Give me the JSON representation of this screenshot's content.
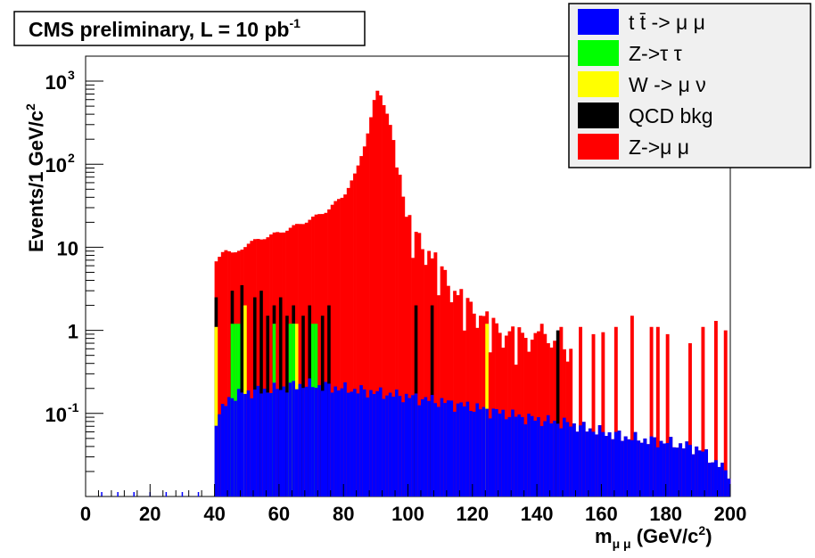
{
  "title": "CMS preliminary, L = 10 pb",
  "title_sup": "-1",
  "chart_data": {
    "type": "bar",
    "stacked": true,
    "log_y": true,
    "xlim": [
      0,
      200
    ],
    "ylim": [
      0.01,
      2000
    ],
    "xlabel": "m",
    "xlabel_sub": "μ μ",
    "xlabel_units": " (GeV/c",
    "xlabel_units_sup": "2",
    "xlabel_units_end": ")",
    "ylabel": "Events/1 GeV/c",
    "ylabel_sup": "2",
    "x_ticks": [
      "0",
      "20",
      "40",
      "60",
      "80",
      "100",
      "120",
      "140",
      "160",
      "180",
      "200"
    ],
    "y_ticks": [
      {
        "base": "10",
        "exp": "-1",
        "value": 0.1
      },
      {
        "base": "1",
        "exp": "",
        "value": 1
      },
      {
        "base": "10",
        "exp": "",
        "value": 10
      },
      {
        "base": "10",
        "exp": "2",
        "value": 100
      },
      {
        "base": "10",
        "exp": "3",
        "value": 1000
      }
    ],
    "legend_position": "top-right",
    "legend": [
      {
        "label": "t t̄ -> μ μ",
        "color": "#0000ff"
      },
      {
        "label": "Z->τ τ",
        "color": "#00ff00"
      },
      {
        "label": "W -> μ ν",
        "color": "#ffff00"
      },
      {
        "label": "QCD bkg",
        "color": "#000000"
      },
      {
        "label": "Z->μ μ",
        "color": "#ff0000"
      }
    ],
    "bin_width": 1,
    "ttbar_points": [
      [
        40,
        0.08
      ],
      [
        45,
        0.16
      ],
      [
        50,
        0.18
      ],
      [
        55,
        0.19
      ],
      [
        60,
        0.2
      ],
      [
        65,
        0.22
      ],
      [
        70,
        0.22
      ],
      [
        75,
        0.21
      ],
      [
        80,
        0.2
      ],
      [
        90,
        0.18
      ],
      [
        100,
        0.16
      ],
      [
        110,
        0.14
      ],
      [
        120,
        0.12
      ],
      [
        130,
        0.1
      ],
      [
        140,
        0.085
      ],
      [
        150,
        0.075
      ],
      [
        160,
        0.06
      ],
      [
        170,
        0.05
      ],
      [
        180,
        0.045
      ],
      [
        190,
        0.038
      ],
      [
        199,
        0.02
      ]
    ],
    "total_points": [
      [
        40,
        6
      ],
      [
        43,
        10
      ],
      [
        46,
        8
      ],
      [
        50,
        11
      ],
      [
        55,
        13
      ],
      [
        60,
        15
      ],
      [
        65,
        18
      ],
      [
        70,
        22
      ],
      [
        75,
        28
      ],
      [
        80,
        42
      ],
      [
        84,
        80
      ],
      [
        87,
        200
      ],
      [
        89,
        450
      ],
      [
        90,
        720
      ],
      [
        91,
        750
      ],
      [
        92,
        600
      ],
      [
        94,
        380
      ],
      [
        96,
        150
      ],
      [
        98,
        50
      ],
      [
        100,
        22
      ],
      [
        103,
        14
      ],
      [
        106,
        10
      ],
      [
        110,
        6
      ],
      [
        115,
        3
      ],
      [
        120,
        2
      ],
      [
        125,
        1.4
      ],
      [
        130,
        1
      ],
      [
        140,
        0.9
      ],
      [
        150,
        0.5
      ]
    ],
    "z_spikes": [
      [
        141,
        1.2
      ],
      [
        145,
        0.75
      ],
      [
        147,
        1.1
      ],
      [
        150,
        0.6
      ],
      [
        153,
        1.1
      ],
      [
        157,
        0.9
      ],
      [
        160,
        0.95
      ],
      [
        164,
        1.1
      ],
      [
        169,
        1.5
      ],
      [
        175,
        1.1
      ],
      [
        177,
        1.1
      ],
      [
        180,
        0.9
      ],
      [
        187,
        0.7
      ],
      [
        191,
        1.1
      ],
      [
        195,
        1.3
      ],
      [
        198,
        1.0
      ]
    ],
    "qcd_bins": [
      [
        40,
        2.5
      ],
      [
        45,
        3
      ],
      [
        48,
        3.5
      ],
      [
        52,
        2.5
      ],
      [
        54,
        3
      ],
      [
        56,
        1.5
      ],
      [
        58,
        2
      ],
      [
        60,
        2.5
      ],
      [
        62,
        1.5
      ],
      [
        64,
        2
      ],
      [
        67,
        1.5
      ],
      [
        69,
        2
      ],
      [
        73,
        1.5
      ],
      [
        75,
        2
      ],
      [
        102,
        2
      ],
      [
        107,
        2
      ],
      [
        146,
        1
      ]
    ],
    "ztautau_bins": [
      [
        45,
        1.2
      ],
      [
        46,
        1.2
      ],
      [
        47,
        1.2
      ],
      [
        58,
        1.2
      ],
      [
        63,
        1.2
      ],
      [
        64,
        1.2
      ],
      [
        70,
        1.2
      ],
      [
        71,
        1.2
      ]
    ],
    "w_bins": [
      [
        40,
        1.1
      ],
      [
        49,
        2
      ],
      [
        64,
        1.2
      ],
      [
        65,
        1.2
      ],
      [
        124,
        1.2
      ]
    ],
    "below_range_hits": [
      5,
      10,
      15,
      20,
      25,
      30,
      35
    ]
  }
}
